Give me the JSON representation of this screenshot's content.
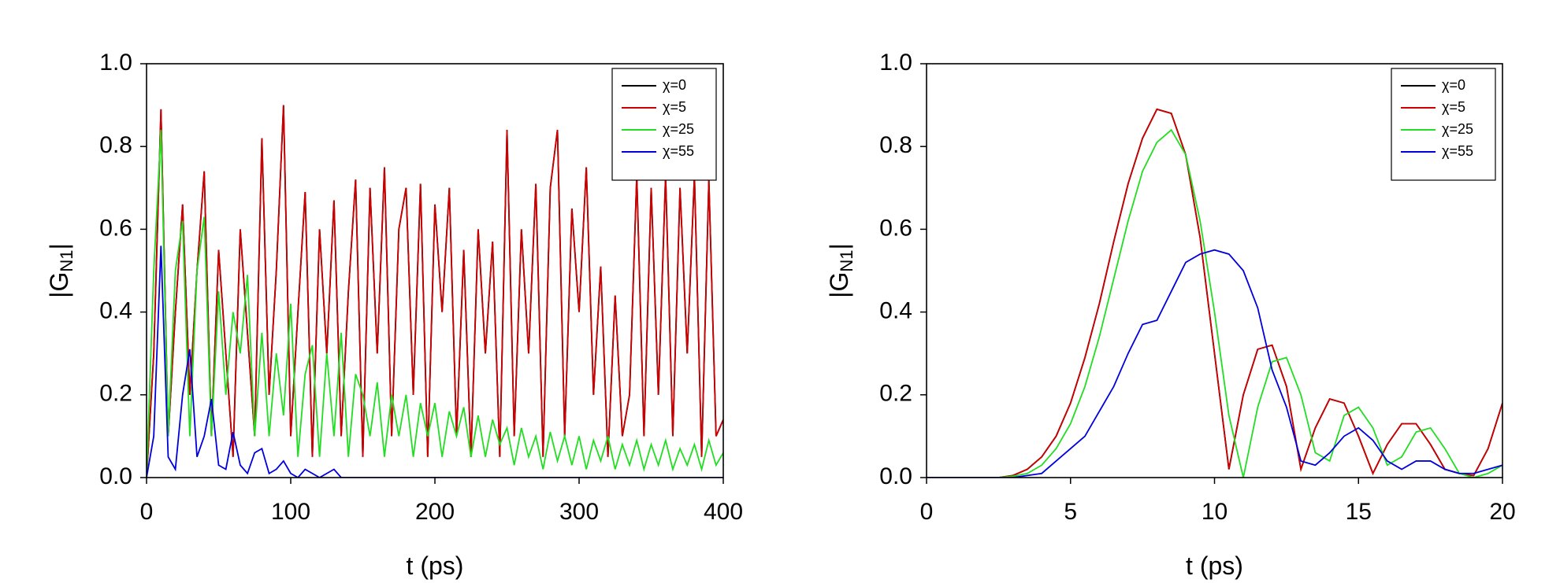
{
  "chart_data": [
    {
      "type": "line",
      "xlabel": "t (ps)",
      "ylabel": [
        "|G",
        "N1",
        "|"
      ],
      "xlim": [
        0,
        400
      ],
      "xticks": [
        0,
        100,
        200,
        300,
        400
      ],
      "ylim": [
        0,
        1
      ],
      "yticks": [
        {
          "value": 0,
          "label": "0.0"
        },
        0.2,
        0.4,
        0.6,
        0.8,
        {
          "value": 1,
          "label": "1.0"
        }
      ],
      "legend": "upper right",
      "x": [
        0,
        5,
        10,
        15,
        20,
        25,
        30,
        35,
        40,
        45,
        50,
        55,
        60,
        65,
        70,
        75,
        80,
        85,
        90,
        95,
        100,
        105,
        110,
        115,
        120,
        125,
        130,
        135,
        140,
        145,
        150,
        155,
        160,
        165,
        170,
        175,
        180,
        185,
        190,
        195,
        200,
        205,
        210,
        215,
        220,
        225,
        230,
        235,
        240,
        245,
        250,
        255,
        260,
        265,
        270,
        275,
        280,
        285,
        290,
        295,
        300,
        305,
        310,
        315,
        320,
        325,
        330,
        335,
        340,
        345,
        350,
        355,
        360,
        365,
        370,
        375,
        380,
        385,
        390,
        395,
        400
      ],
      "series": [
        {
          "name": "χ=0",
          "color": "#000000",
          "values": [
            0,
            0.3,
            0.89,
            0.1,
            0.4,
            0.66,
            0.2,
            0.5,
            0.74,
            0.1,
            0.55,
            0.3,
            0.05,
            0.6,
            0.35,
            0.1,
            0.82,
            0.2,
            0.5,
            0.9,
            0.1,
            0.4,
            0.69,
            0.05,
            0.6,
            0.3,
            0.67,
            0.1,
            0.45,
            0.72,
            0.05,
            0.7,
            0.3,
            0.75,
            0.1,
            0.6,
            0.7,
            0.2,
            0.71,
            0.05,
            0.66,
            0.4,
            0.7,
            0.1,
            0.55,
            0.05,
            0.6,
            0.3,
            0.57,
            0.05,
            0.84,
            0.1,
            0.6,
            0.3,
            0.71,
            0.05,
            0.7,
            0.84,
            0.1,
            0.65,
            0.4,
            0.75,
            0.2,
            0.51,
            0.05,
            0.44,
            0.1,
            0.2,
            0.73,
            0.1,
            0.7,
            0.2,
            0.73,
            0.1,
            0.7,
            0.3,
            0.73,
            0.05,
            0.72,
            0.1,
            0.14
          ]
        },
        {
          "name": "χ=5",
          "color": "#cc0000",
          "values": [
            0,
            0.3,
            0.89,
            0.1,
            0.4,
            0.66,
            0.2,
            0.5,
            0.74,
            0.1,
            0.55,
            0.3,
            0.05,
            0.6,
            0.35,
            0.1,
            0.82,
            0.2,
            0.5,
            0.9,
            0.1,
            0.4,
            0.69,
            0.05,
            0.6,
            0.3,
            0.67,
            0.1,
            0.45,
            0.72,
            0.05,
            0.7,
            0.3,
            0.75,
            0.1,
            0.6,
            0.7,
            0.2,
            0.71,
            0.05,
            0.66,
            0.4,
            0.7,
            0.1,
            0.55,
            0.05,
            0.6,
            0.3,
            0.57,
            0.05,
            0.84,
            0.1,
            0.6,
            0.3,
            0.71,
            0.05,
            0.7,
            0.84,
            0.1,
            0.65,
            0.4,
            0.75,
            0.2,
            0.51,
            0.05,
            0.44,
            0.1,
            0.2,
            0.73,
            0.1,
            0.7,
            0.2,
            0.73,
            0.1,
            0.7,
            0.3,
            0.73,
            0.05,
            0.72,
            0.1,
            0.14
          ]
        },
        {
          "name": "χ=25",
          "color": "#22dd22",
          "values": [
            0,
            0.5,
            0.84,
            0.1,
            0.5,
            0.62,
            0.1,
            0.5,
            0.63,
            0.1,
            0.45,
            0.2,
            0.4,
            0.3,
            0.49,
            0.1,
            0.35,
            0.1,
            0.3,
            0.15,
            0.42,
            0.05,
            0.25,
            0.32,
            0.05,
            0.3,
            0.1,
            0.35,
            0.05,
            0.25,
            0.2,
            0.1,
            0.23,
            0.05,
            0.2,
            0.1,
            0.2,
            0.05,
            0.18,
            0.1,
            0.18,
            0.05,
            0.16,
            0.1,
            0.17,
            0.05,
            0.15,
            0.05,
            0.14,
            0.08,
            0.12,
            0.03,
            0.12,
            0.05,
            0.1,
            0.02,
            0.11,
            0.04,
            0.1,
            0.03,
            0.1,
            0.02,
            0.09,
            0.04,
            0.1,
            0.02,
            0.08,
            0.03,
            0.09,
            0.02,
            0.08,
            0.03,
            0.09,
            0.02,
            0.07,
            0.03,
            0.08,
            0.02,
            0.09,
            0.03,
            0.06
          ]
        },
        {
          "name": "χ=55",
          "color": "#0000dd",
          "values": [
            0,
            0.1,
            0.56,
            0.05,
            0.02,
            0.2,
            0.31,
            0.05,
            0.1,
            0.19,
            0.03,
            0.02,
            0.11,
            0.03,
            0.01,
            0.06,
            0.07,
            0.01,
            0.02,
            0.04,
            0.01,
            0,
            0.02,
            0.01,
            0,
            0.01,
            0.02,
            0,
            0,
            0,
            0,
            0,
            0,
            0,
            0,
            0,
            0,
            0,
            0,
            0,
            0,
            0,
            0,
            0,
            0,
            0,
            0,
            0,
            0,
            0,
            0,
            0,
            0,
            0,
            0,
            0,
            0,
            0,
            0,
            0,
            0,
            0,
            0,
            0,
            0,
            0,
            0,
            0,
            0,
            0,
            0,
            0,
            0,
            0,
            0,
            0,
            0,
            0,
            0,
            0,
            0
          ]
        }
      ]
    },
    {
      "type": "line",
      "xlabel": "t (ps)",
      "ylabel": [
        "|G",
        "N1",
        "|"
      ],
      "xlim": [
        0,
        20
      ],
      "xticks": [
        0,
        5,
        10,
        15,
        20
      ],
      "ylim": [
        0,
        1
      ],
      "yticks": [
        {
          "value": 0,
          "label": "0.0"
        },
        0.2,
        0.4,
        0.6,
        0.8,
        {
          "value": 1,
          "label": "1.0"
        }
      ],
      "legend": "upper right",
      "x": [
        0,
        0.5,
        1,
        1.5,
        2,
        2.5,
        3,
        3.5,
        4,
        4.5,
        5,
        5.5,
        6,
        6.5,
        7,
        7.5,
        8,
        8.5,
        9,
        9.5,
        10,
        10.5,
        11,
        11.5,
        12,
        12.5,
        13,
        13.5,
        14,
        14.5,
        15,
        15.5,
        16,
        16.5,
        17,
        17.5,
        18,
        18.5,
        19,
        19.5,
        20
      ],
      "series": [
        {
          "name": "χ=0",
          "color": "#000000",
          "values": [
            0,
            0,
            0,
            0,
            0,
            0,
            0.005,
            0.02,
            0.05,
            0.1,
            0.18,
            0.29,
            0.42,
            0.57,
            0.71,
            0.82,
            0.89,
            0.88,
            0.78,
            0.58,
            0.3,
            0.02,
            0.2,
            0.31,
            0.32,
            0.22,
            0.02,
            0.12,
            0.19,
            0.18,
            0.1,
            0.01,
            0.08,
            0.13,
            0.13,
            0.08,
            0.02,
            0.01,
            0.005,
            0.07,
            0.18
          ]
        },
        {
          "name": "χ=5",
          "color": "#cc0000",
          "values": [
            0,
            0,
            0,
            0,
            0,
            0,
            0.005,
            0.02,
            0.05,
            0.1,
            0.18,
            0.29,
            0.42,
            0.57,
            0.71,
            0.82,
            0.89,
            0.88,
            0.78,
            0.58,
            0.3,
            0.02,
            0.2,
            0.31,
            0.32,
            0.22,
            0.02,
            0.12,
            0.19,
            0.18,
            0.1,
            0.01,
            0.08,
            0.13,
            0.13,
            0.08,
            0.02,
            0.01,
            0.005,
            0.07,
            0.18
          ]
        },
        {
          "name": "χ=25",
          "color": "#22dd22",
          "values": [
            0,
            0,
            0,
            0,
            0,
            0,
            0.003,
            0.01,
            0.03,
            0.07,
            0.13,
            0.22,
            0.34,
            0.48,
            0.62,
            0.74,
            0.81,
            0.84,
            0.78,
            0.62,
            0.4,
            0.15,
            0,
            0.17,
            0.28,
            0.29,
            0.2,
            0.06,
            0.04,
            0.15,
            0.17,
            0.12,
            0.03,
            0.05,
            0.11,
            0.12,
            0.07,
            0.01,
            0,
            0.01,
            0.03
          ]
        },
        {
          "name": "χ=55",
          "color": "#0000dd",
          "values": [
            0,
            0,
            0,
            0,
            0,
            0,
            0,
            0.005,
            0.01,
            0.04,
            0.07,
            0.1,
            0.16,
            0.22,
            0.3,
            0.37,
            0.38,
            0.45,
            0.52,
            0.54,
            0.55,
            0.54,
            0.5,
            0.41,
            0.26,
            0.17,
            0.04,
            0.03,
            0.06,
            0.1,
            0.12,
            0.09,
            0.04,
            0.02,
            0.04,
            0.04,
            0.02,
            0.01,
            0.01,
            0.02,
            0.03
          ]
        }
      ]
    }
  ]
}
